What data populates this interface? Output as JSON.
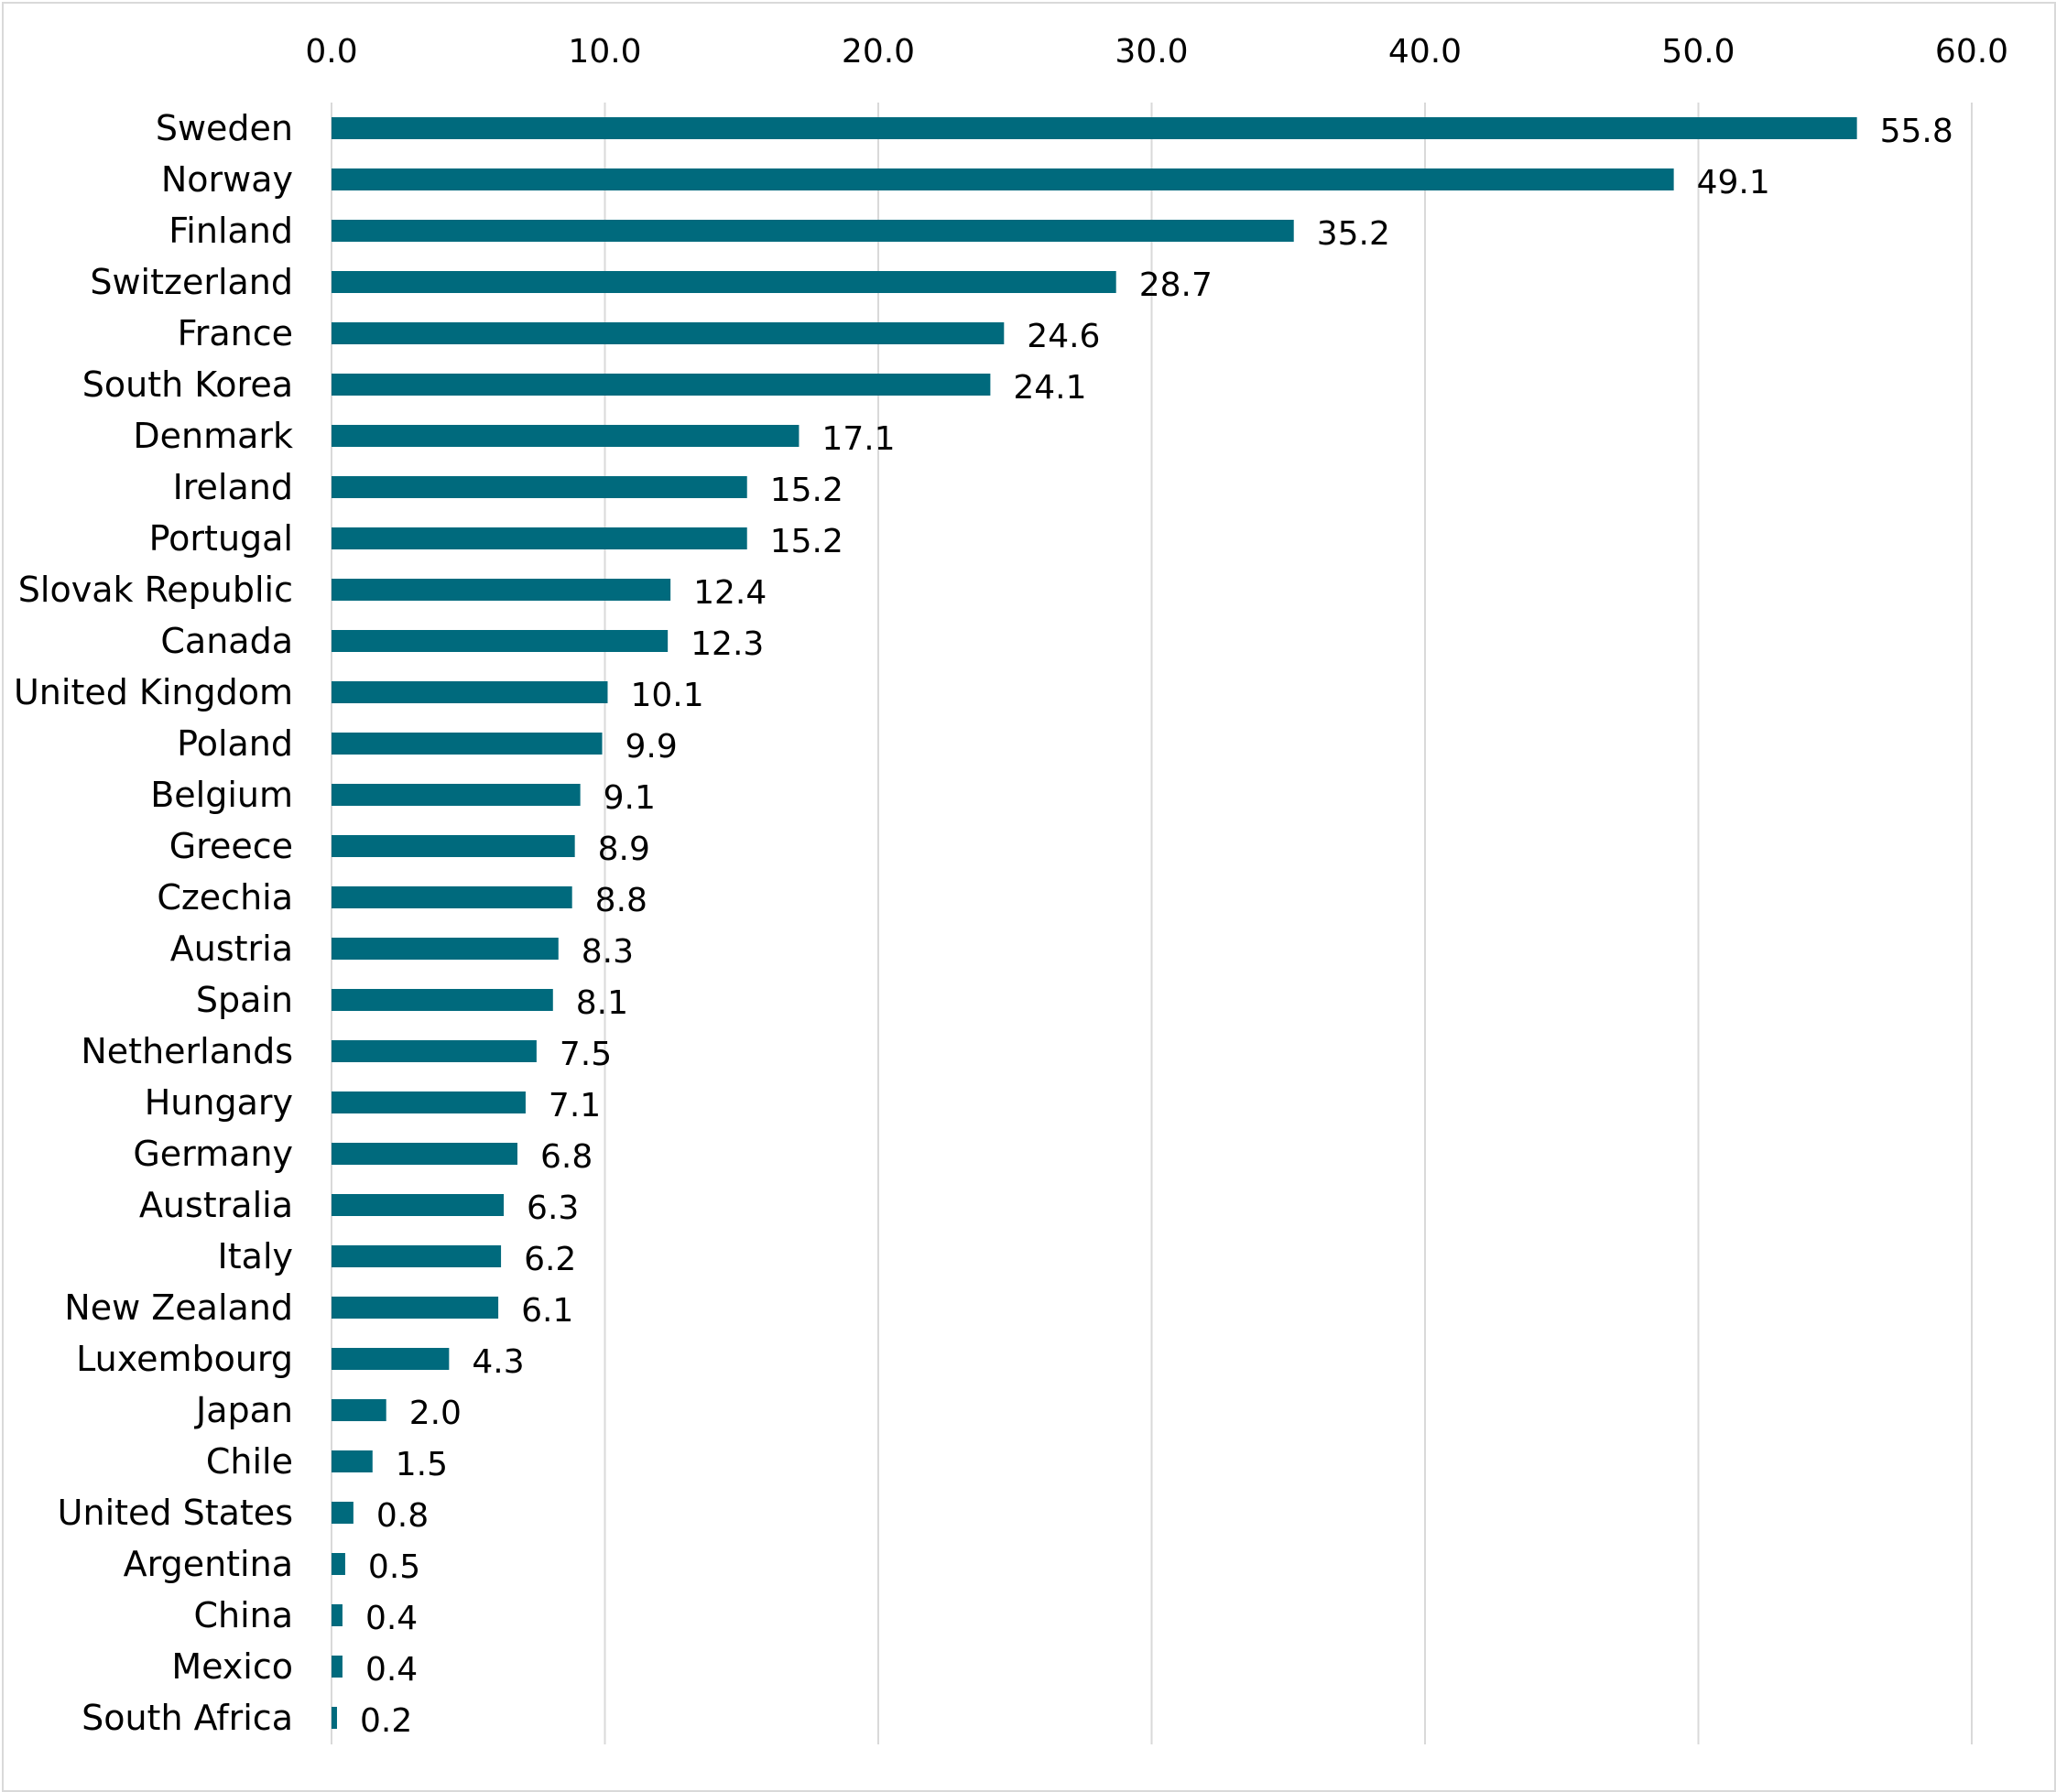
{
  "chart_data": {
    "type": "bar",
    "orientation": "horizontal",
    "title": "",
    "xlabel": "",
    "ylabel": "",
    "xlim": [
      0,
      60
    ],
    "x_ticks": [
      "0.0",
      "10.0",
      "20.0",
      "30.0",
      "40.0",
      "50.0",
      "60.0"
    ],
    "x_tick_values": [
      0,
      10,
      20,
      30,
      40,
      50,
      60
    ],
    "axis_position": "top",
    "grid": true,
    "legend": "none",
    "bar_color": "#006a7d",
    "categories": [
      "Sweden",
      "Norway",
      "Finland",
      "Switzerland",
      "France",
      "South Korea",
      "Denmark",
      "Ireland",
      "Portugal",
      "Slovak Republic",
      "Canada",
      "United Kingdom",
      "Poland",
      "Belgium",
      "Greece",
      "Czechia",
      "Austria",
      "Spain",
      "Netherlands",
      "Hungary",
      "Germany",
      "Australia",
      "Italy",
      "New Zealand",
      "Luxembourg",
      "Japan",
      "Chile",
      "United States",
      "Argentina",
      "China",
      "Mexico",
      "South Africa"
    ],
    "values": [
      55.8,
      49.1,
      35.2,
      28.7,
      24.6,
      24.1,
      17.1,
      15.2,
      15.2,
      12.4,
      12.3,
      10.1,
      9.9,
      9.1,
      8.9,
      8.8,
      8.3,
      8.1,
      7.5,
      7.1,
      6.8,
      6.3,
      6.2,
      6.1,
      4.3,
      2.0,
      1.5,
      0.8,
      0.5,
      0.4,
      0.4,
      0.2
    ],
    "data_labels": [
      "55.8",
      "49.1",
      "35.2",
      "28.7",
      "24.6",
      "24.1",
      "17.1",
      "15.2",
      "15.2",
      "12.4",
      "12.3",
      "10.1",
      "9.9",
      "9.1",
      "8.9",
      "8.8",
      "8.3",
      "8.1",
      "7.5",
      "7.1",
      "6.8",
      "6.3",
      "6.2",
      "6.1",
      "4.3",
      "2.0",
      "1.5",
      "0.8",
      "0.5",
      "0.4",
      "0.4",
      "0.2"
    ]
  }
}
